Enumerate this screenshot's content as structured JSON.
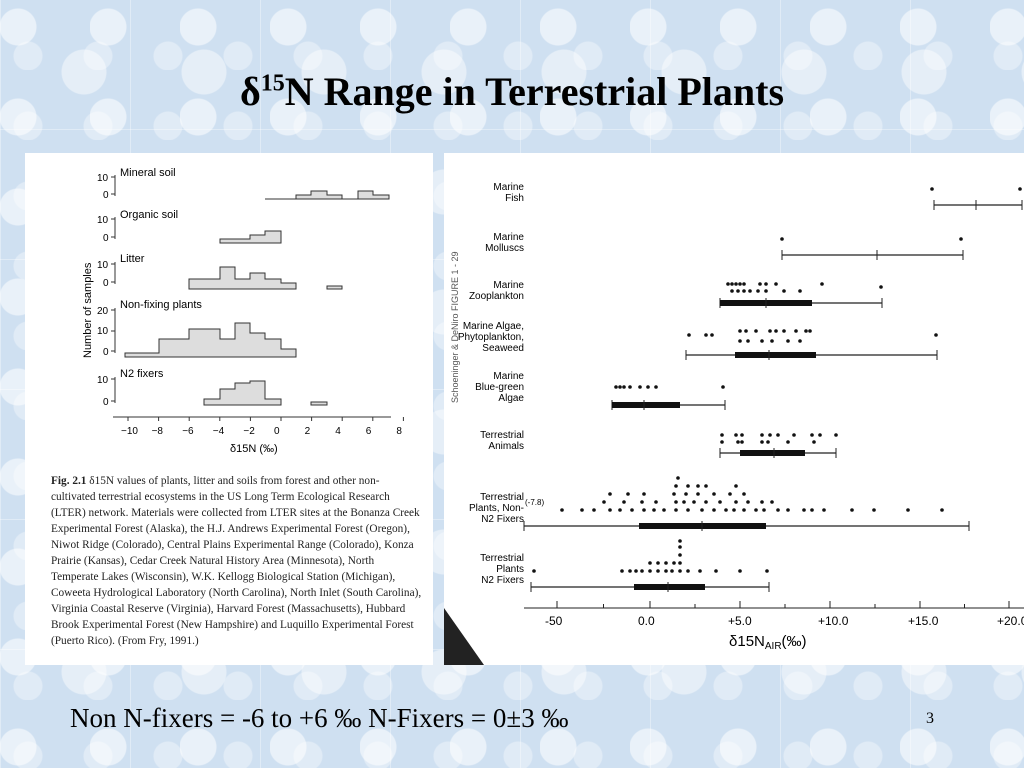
{
  "slide": {
    "title_prefix": "δ",
    "title_sup": "15",
    "title_rest": "N Range in Terrestrial Plants",
    "footer": "Non N-fixers = -6 to +6 ‰  N-Fixers = 0±3 ‰",
    "slide_number": "3"
  },
  "left_figure": {
    "ylabel": "Number of samples",
    "xlabel": "δ15N (‰)",
    "x_ticks": [
      "−10",
      "−8",
      "−6",
      "−4",
      "−2",
      "0",
      "2",
      "4",
      "6",
      "8"
    ],
    "panels": [
      {
        "label": "Mineral soil",
        "ticks": [
          "10",
          "0"
        ]
      },
      {
        "label": "Organic soil",
        "ticks": [
          "10",
          "0"
        ]
      },
      {
        "label": "Litter",
        "ticks": [
          "10",
          "0"
        ]
      },
      {
        "label": "Non-fixing plants",
        "ticks": [
          "20",
          "10",
          "0"
        ]
      },
      {
        "label": "N2 fixers",
        "ticks": [
          "10",
          "0"
        ]
      }
    ],
    "caption_fig": "Fig. 2.1",
    "caption_text": " δ15N values of plants, litter and soils from forest and other non-cultivated terrestrial ecosystems in the US Long Term Ecological Research (LTER) network. Materials were collected from LTER sites at the Bonanza Creek Experimental Forest (Alaska), the H.J. Andrews Experimental Forest (Oregon), Niwot Ridge (Colorado), Central Plains Experimental Range (Colorado), Konza Prairie (Kansas), Cedar Creek Natural History Area (Minnesota), North Temperate Lakes (Wisconsin), W.K. Kellogg Biological Station (Michigan), Coweeta Hydrological Laboratory (North Carolina), North Inlet (South Carolina), Virginia Coastal Reserve (Virginia), Harvard Forest (Massachusetts), Hubbard Brook Experimental Forest (New Hampshire) and Luquillo Experimental Forest (Puerto Rico). (From Fry, 1991.)"
  },
  "right_figure": {
    "side_note": "Schoeninger & DeNiro   FIGURE 1   - 29",
    "x_ticks": [
      "-50",
      "0.0",
      "+5.0",
      "+10.0",
      "+15.0",
      "+20.0"
    ],
    "xlabel": "δ15N",
    "xlabel_sub": "AIR",
    "xlabel_unit": "(‰)",
    "outlier_label": "(-7.8)",
    "groups": [
      {
        "lines": [
          "Marine",
          "Fish"
        ]
      },
      {
        "lines": [
          "Marine",
          "Molluscs"
        ]
      },
      {
        "lines": [
          "Marine",
          "Zooplankton"
        ]
      },
      {
        "lines": [
          "Marine Algae,",
          "Phytoplankton,",
          "Seaweed"
        ]
      },
      {
        "lines": [
          "Marine",
          "Blue-green",
          "Algae"
        ]
      },
      {
        "lines": [
          "Terrestrial",
          "Animals"
        ]
      },
      {
        "lines": [
          "Terrestrial",
          "Plants, Non-",
          "N2 Fixers"
        ]
      },
      {
        "lines": [
          "Terrestrial",
          "Plants",
          "N2 Fixers"
        ]
      }
    ]
  }
}
